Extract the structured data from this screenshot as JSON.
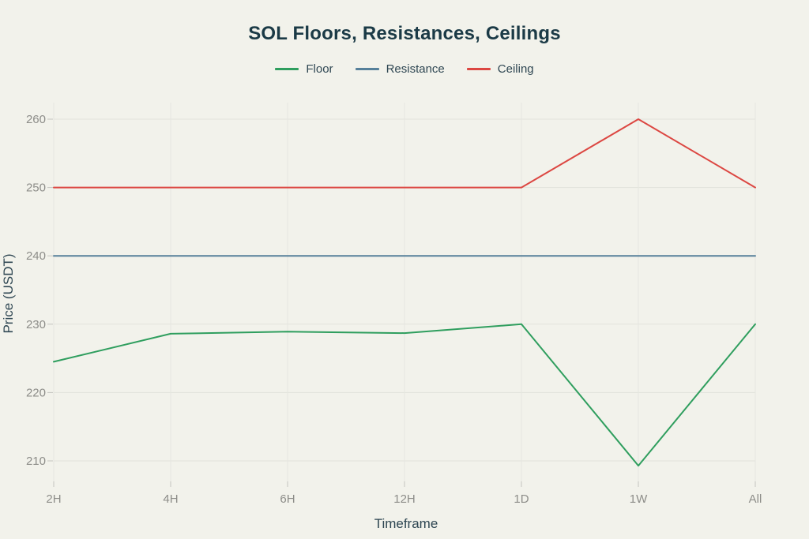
{
  "page": {
    "background": "#F2F2EB"
  },
  "chart_data": {
    "type": "line",
    "title": "SOL Floors, Resistances, Ceilings",
    "xlabel": "Timeframe",
    "ylabel": "Price (USDT)",
    "categories": [
      "2H",
      "4H",
      "6H",
      "12H",
      "1D",
      "1W",
      "All"
    ],
    "series": [
      {
        "name": "Floor",
        "color": "#2F9E5E",
        "values": [
          224.5,
          228.6,
          228.9,
          228.7,
          230,
          209.3,
          230
        ]
      },
      {
        "name": "Resistance",
        "color": "#56809A",
        "values": [
          240,
          240,
          240,
          240,
          240,
          240,
          240
        ]
      },
      {
        "name": "Ceiling",
        "color": "#DC4742",
        "values": [
          250,
          250,
          250,
          250,
          250,
          260,
          250
        ]
      }
    ],
    "yticks": [
      210,
      220,
      230,
      240,
      250,
      260
    ],
    "ylim": [
      207,
      262.5
    ],
    "grid": true,
    "legend_position": "top-center",
    "styles": {
      "title_color": "#1B3A46",
      "axis_label_color": "#2F4753",
      "tick_label_color": "#8D8D89",
      "hgrid_color": "#E1E2DB",
      "vgrid_color": "#E6E7E0",
      "tick_color": "#C4C4BF"
    }
  }
}
